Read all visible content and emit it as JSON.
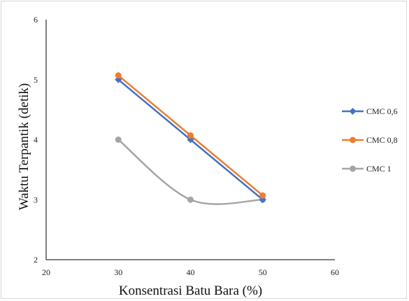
{
  "chart_data": {
    "type": "scatter",
    "title": "",
    "xlabel": "Konsentrasi Batu Bara (%)",
    "ylabel": "Waktu Terpantik (detik)",
    "xlim": [
      20,
      60
    ],
    "ylim": [
      2,
      6
    ],
    "xticks": [
      20,
      30,
      40,
      50,
      60
    ],
    "yticks": [
      2,
      3,
      4,
      5,
      6
    ],
    "grid": false,
    "legend_position": "right",
    "series": [
      {
        "name": "CMC 0,6",
        "color": "#4472C4",
        "marker": "diamond",
        "line": "straight",
        "x": [
          30,
          40,
          50
        ],
        "y": [
          5,
          4,
          3
        ]
      },
      {
        "name": "CMC 0,8",
        "color": "#ED7D31",
        "marker": "circle",
        "line": "straight",
        "x": [
          30,
          40,
          50
        ],
        "y": [
          5.07,
          4.07,
          3.07
        ]
      },
      {
        "name": "CMC 1",
        "color": "#A5A5A5",
        "marker": "circle",
        "line": "smooth",
        "x": [
          30,
          40,
          50
        ],
        "y": [
          4,
          3,
          3
        ]
      }
    ]
  }
}
